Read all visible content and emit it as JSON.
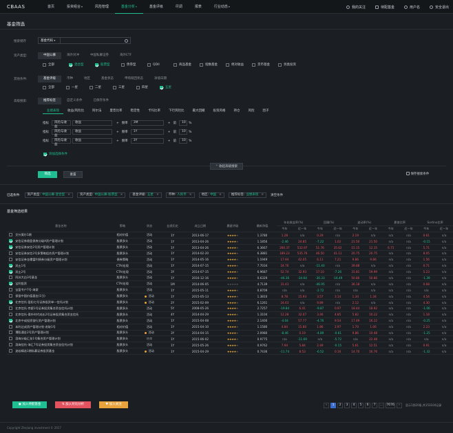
{
  "header": {
    "logo": "CBAAS",
    "nav": [
      "首页",
      "投资组合",
      "风险管理",
      "基金分析",
      "基金评级",
      "尽调",
      "报表",
      "行业动态"
    ],
    "active": 3,
    "nav_arrows": [
      false,
      true,
      false,
      true,
      false,
      false,
      false,
      true
    ],
    "right": [
      "我的关注",
      "待配基金",
      "用户名",
      "安全退出"
    ]
  },
  "page": {
    "title": "基金筛选"
  },
  "search": {
    "label": "搜索储存",
    "select": "基金代码",
    "placeholder": ""
  },
  "asset": {
    "label": "资产类型:",
    "tabs": [
      "中国公募",
      "海外对冲",
      "中国私募证券",
      "海外ETF"
    ],
    "checks": [
      {
        "t": "全部",
        "c": false
      },
      {
        "t": "混合型",
        "c": true
      },
      {
        "t": "股票型",
        "c": true
      },
      {
        "t": "债券型",
        "c": false
      },
      {
        "t": "QDII",
        "c": false
      },
      {
        "t": "商品基金",
        "c": false
      },
      {
        "t": "指数基金",
        "c": false
      },
      {
        "t": "绝对收益",
        "c": false
      },
      {
        "t": "货币基金",
        "c": false
      },
      {
        "t": "另类投资",
        "c": false
      }
    ]
  },
  "other": {
    "label": "其他条件:",
    "tabs": [
      "基金评级",
      "币种",
      "地区",
      "基金状态",
      "申购赎回状态",
      "净值日期"
    ],
    "checks": [
      {
        "t": "全部",
        "c": false
      },
      {
        "t": "一星",
        "c": false
      },
      {
        "t": "二星",
        "c": false
      },
      {
        "t": "三星",
        "c": false
      },
      {
        "t": "四星",
        "c": false
      },
      {
        "t": "五星",
        "c": true
      }
    ]
  },
  "adv": {
    "label": "高级搜索:",
    "tabs": [
      "推荐标签",
      "自定义条件",
      "已保存条件"
    ],
    "subtabs": [
      "业绩表现",
      "收益/风险比",
      "阿尔法",
      "夏普比率",
      "稳定性",
      "卡玛比率",
      "下行风险比",
      "最大回撤",
      "投资风格",
      "持仓",
      "风险",
      "因子"
    ],
    "rows": [
      {
        "a": "指标",
        "b": "风险与收益",
        "c": "收益",
        "d": "频率",
        "e": "3M",
        "f": "前",
        "g": "10",
        "h": "%"
      },
      {
        "a": "指标",
        "b": "风险与收益",
        "c": "收益",
        "d": "频率",
        "e": "1Y",
        "f": "前",
        "g": "10",
        "h": "%"
      },
      {
        "a": "指标",
        "b": "风险与收益",
        "c": "收益",
        "d": "频率",
        "e": "3Y",
        "f": "前",
        "g": "10",
        "h": "%"
      }
    ],
    "add": "添加选择条件",
    "collapse": "收起高级搜索"
  },
  "buttons": {
    "filter": "筛选",
    "reset": "重置",
    "save": "保存搜索条件"
  },
  "selected": {
    "label": "已选条件:",
    "tags": [
      {
        "k": "资产类型:",
        "v": "中国公募-混合型"
      },
      {
        "k": "资产类型:",
        "v": "中国公募-股票型"
      },
      {
        "k": "基金评级:",
        "v": "五星"
      },
      {
        "k": "币种:",
        "v": "人民币"
      },
      {
        "k": "地区:",
        "v": "中国"
      },
      {
        "k": "推荐标签:",
        "v": "业绩表现"
      }
    ],
    "clear": "清空条件"
  },
  "result": {
    "title": "基金筛选结果"
  },
  "table": {
    "headers": [
      "基金名称",
      "策略",
      "状态",
      "业绩历史",
      "成立日期",
      "晨星评级",
      "最新净值",
      "年化收益率(%)",
      "回撤(%)",
      "波动率(%)",
      "夏普比率",
      "Sortino比率"
    ],
    "sub": [
      "今年",
      "近一年",
      "今年",
      "近一年",
      "今年",
      "近一年",
      "今年",
      "近一年",
      "今年",
      "近一年"
    ],
    "rows": [
      {
        "c": false,
        "n": "艾什莫尔1期",
        "s": "相对价值",
        "d": false,
        "st": "活动",
        "h": "1Y",
        "dt": "2013-06-17",
        "r": 4,
        "nv": "1.3780",
        "v": [
          "1.28",
          "n/a",
          "0.29",
          "n/a",
          "2.19",
          "n/a",
          "n/a",
          "n/a",
          "0.61",
          "n/a"
        ]
      },
      {
        "c": true,
        "n": "安信证券稳盈债券分级A资产管理计划",
        "s": "股票多头",
        "d": false,
        "st": "活动",
        "h": "1Y",
        "dt": "2013-04-26",
        "r": 4,
        "nv": "1.1856",
        "v": [
          "-2.46",
          "24.85",
          "-7.22",
          "1.02",
          "21.50",
          "21.50",
          "n/a",
          "n/a",
          "-0.15",
          "n/a"
        ]
      },
      {
        "c": true,
        "n": "安信证券安信2号资产管理计划",
        "s": "股票多头",
        "d": false,
        "st": "活动",
        "h": "1Y",
        "dt": "2013-04-26",
        "r": 4,
        "nv": "6.3667",
        "v": [
          "260.37",
          "532.97",
          "51.76",
          "35.62",
          "15.15",
          "12.15",
          "6.71",
          "n/a",
          "5.71",
          "n/a"
        ]
      },
      {
        "c": false,
        "n": "安信证券安信2号多策略组合资产管理计划",
        "s": "股票多头",
        "d": false,
        "st": "活动",
        "h": "1Y",
        "dt": "2014-02-20",
        "r": 4,
        "nv": "6.3881",
        "v": [
          "189.23",
          "535.76",
          "46.50",
          "41.11",
          "20.75",
          "20.75",
          "n/a",
          "n/a",
          "8.05",
          "n/a"
        ]
      },
      {
        "c": false,
        "n": "安信证券金穗富利债券分级资产管理计划",
        "s": "债券策略",
        "d": false,
        "st": "活动",
        "h": "1Y",
        "dt": "2014-05-16",
        "r": 4,
        "nv": "1.1949",
        "v": [
          "17.94",
          "42.05",
          "6.11",
          "7.21",
          "9.86",
          "9.86",
          "n/a",
          "n/a",
          "1.56",
          "n/a"
        ]
      },
      {
        "c": true,
        "n": "润土1号",
        "s": "CTA/宏观",
        "d": false,
        "st": "活动",
        "h": "1Y",
        "dt": "2014-07-15",
        "r": 4,
        "nv": "7.7034",
        "v": [
          "24.76",
          "n/a",
          "-11.40",
          "n/a",
          "39.88",
          "n/a",
          "n/a",
          "n/a",
          "0.71",
          "n/a"
        ]
      },
      {
        "c": true,
        "n": "润土2号",
        "s": "CTA/宏观",
        "d": false,
        "st": "活动",
        "h": "3Y",
        "dt": "2014-07-15",
        "r": 4,
        "nv": "6.9687",
        "v": [
          "52.74",
          "32.93",
          "17.10",
          "-7.26",
          "31.81",
          "59.99",
          "n/a",
          "n/a",
          "5.23",
          "n/a"
        ]
      },
      {
        "c": false,
        "n": "阿苏大白3号基金",
        "s": "股票多头",
        "d": false,
        "st": "活动",
        "h": "1Y",
        "dt": "2016-12-16",
        "r": 4,
        "nv": "0.6329",
        "v": [
          "-46.36",
          "-34.64",
          "-30.33",
          "-16.49",
          "50.86",
          "50.86",
          "n/a",
          "n/a",
          "-1.39",
          "n/a"
        ]
      },
      {
        "c": true,
        "n": "宝利投资",
        "s": "CTA/宏观",
        "d": false,
        "st": "活动",
        "h": "1M",
        "dt": "2014-06-05",
        "r": 0,
        "nv": "4.7139",
        "v": [
          "31.43",
          "n/a",
          "-46.95",
          "n/a",
          "36.18",
          "n/a",
          "n/a",
          "n/a",
          "0.68",
          "n/a"
        ]
      },
      {
        "c": false,
        "n": "宝盈专户7号-海棠",
        "s": "股票多头",
        "d": false,
        "st": "活动",
        "h": "1Y",
        "dt": "2015-05-11",
        "r": 4,
        "nv": "0.8709",
        "v": [
          "n/a",
          "n/a",
          "-2.72",
          "n/a",
          "n/a",
          "n/a",
          "n/a",
          "n/a",
          "n/a",
          "n/a"
        ]
      },
      {
        "c": false,
        "n": "保银中国价值基金(1引)",
        "s": "股票多头",
        "d": true,
        "st": "活动",
        "h": "1Y",
        "dt": "2015-05-13",
        "r": 4,
        "nv": "1.3810",
        "v": [
          "8.78",
          "15.93",
          "3.57",
          "3.14",
          "1.34",
          "1.34",
          "n/a",
          "n/a",
          "4.54",
          "n/a"
        ]
      },
      {
        "c": true,
        "n": "北京信托-盈阳七号证券投资单一信托计划",
        "s": "股票多头",
        "d": true,
        "st": "活动",
        "h": "2Y",
        "dt": "2015-02-09",
        "r": 4,
        "nv": "6.1261",
        "v": [
          "24.63",
          "n/a",
          "9.89",
          "n/a",
          "2.12",
          "n/a",
          "n/a",
          "n/a",
          "4.30",
          "n/a"
        ]
      },
      {
        "c": false,
        "n": "北京信托-京碧1号证券投资集合资金信托计划",
        "s": "股票多头",
        "d": false,
        "st": "活动",
        "h": "5Y",
        "dt": "2008-05-26",
        "r": 4,
        "nv": "2.7257",
        "v": [
          "-19.84",
          "6.41",
          "-9.87",
          "0.97",
          "18.44",
          "18.92",
          "n/a",
          "n/a",
          "-1.06",
          "n/a"
        ]
      },
      {
        "c": false,
        "n": "北京信托-青朴时代成长2号证券投资集合资金信托",
        "s": "股票多头",
        "d": false,
        "st": "活动",
        "h": "4Y",
        "dt": "2014-04-29",
        "r": 4,
        "nv": "1.3104",
        "v": [
          "12.28",
          "32.07",
          "3.46",
          "4.85",
          "5.82",
          "10.22",
          "n/a",
          "n/a",
          "1.18",
          "n/a"
        ]
      },
      {
        "c": true,
        "n": "北京中成投资银行资产管理计划",
        "s": "股票多头",
        "d": false,
        "st": "活动",
        "h": "1Y",
        "dt": "2015-04-08",
        "r": 4,
        "nv": "2.1400",
        "v": [
          "-4.04",
          "57.77",
          "-4.76",
          "9.54",
          "17.49",
          "16.22",
          "n/a",
          "n/a",
          "-0.25",
          "n/a"
        ]
      },
      {
        "c": false,
        "n": "本利达成资产管理计划-进取1号",
        "s": "相对价值",
        "d": false,
        "st": "活动",
        "h": "1Y",
        "dt": "2015-04-10",
        "r": 4,
        "nv": "1.1580",
        "v": [
          "4.84",
          "15.80",
          "1.86",
          "2.97",
          "1.70",
          "1.06",
          "n/a",
          "n/a",
          "2.23",
          "n/a"
        ]
      },
      {
        "c": false,
        "n": "博股通金2号资产管理计划",
        "s": "股票多头",
        "d": true,
        "st": "活动",
        "h": "3Y",
        "dt": "2014-04-15",
        "r": 4,
        "nv": "2.0980",
        "v": [
          "-8.46",
          "0.19",
          "-4.89",
          "-0.61",
          "9.86",
          "10.48",
          "n/a",
          "n/a",
          "-1.25",
          "n/a"
        ]
      },
      {
        "c": false,
        "n": "渤海分级汇垒1号集合资产管理计划",
        "s": "股票多头",
        "d": false,
        "st": "结束",
        "h": "1Y",
        "dt": "2015-06-02",
        "r": 4,
        "nv": "0.9775",
        "v": [
          "n/a",
          "-11.69",
          "n/a",
          "-5.72",
          "n/a",
          "22.48",
          "n/a",
          "n/a",
          "n/a",
          "n/a"
        ]
      },
      {
        "c": false,
        "n": "渤海信托-海汇7号证券投资集合资金信托计划",
        "s": "股票多头",
        "d": false,
        "st": "活动",
        "h": "1Y",
        "dt": "2015-05-26",
        "r": 4,
        "nv": "0.9762",
        "v": [
          "7.94",
          "5.84",
          "2.49",
          "-0.15",
          "5.61",
          "12.51",
          "n/a",
          "n/a",
          "0.91",
          "n/a"
        ]
      },
      {
        "c": false,
        "n": "波若精选1期私募证券投资基金",
        "s": "股票多头",
        "d": true,
        "st": "活动",
        "h": "1Y",
        "dt": "2015-04-29",
        "r": 4,
        "nv": "0.7436",
        "v": [
          "-11.74",
          "8.53",
          "-6.52",
          "0.16",
          "14.70",
          "16.76",
          "n/a",
          "n/a",
          "-1.32",
          "n/a"
        ]
      }
    ]
  },
  "actions": {
    "a": "加入待配基金",
    "b": "加入对比分析",
    "c": "加入关注"
  },
  "pagination": {
    "pages": [
      "1",
      "2",
      "3",
      "4",
      "5",
      "6",
      "7",
      "...",
      "7676"
    ],
    "current": "1",
    "info": "显示1到20条,共153104记录"
  },
  "footer": "Copyright Zhejiang investment © 2017",
  "colors": {
    "accent": "#1fbf93",
    "up": "#e3525f",
    "down": "#27c396",
    "star": "#e8a33d"
  }
}
